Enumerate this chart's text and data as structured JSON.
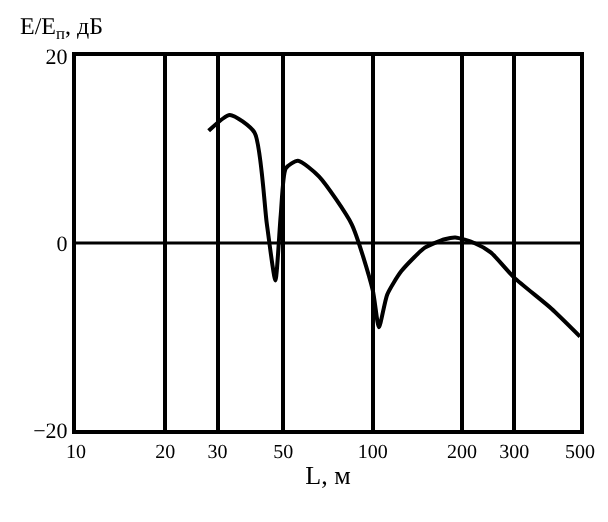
{
  "chart_data": {
    "type": "line",
    "ylabel": "E/E$_{п}$, дБ",
    "xlabel": "L, м",
    "log": "x",
    "color": "#000000",
    "x": [
      28,
      33,
      40,
      44,
      47,
      49,
      51,
      56,
      66,
      85,
      100,
      105,
      112,
      125,
      150,
      175,
      190,
      220,
      250,
      300,
      400,
      500
    ],
    "values": [
      12,
      13.7,
      11.8,
      2,
      -4,
      3,
      8,
      8.8,
      7.1,
      2,
      -5,
      -9,
      -5.5,
      -3,
      -0.5,
      0.4,
      0.6,
      0,
      -1,
      -3.7,
      -7,
      -10
    ],
    "xlim": [
      10,
      500
    ],
    "xticks": [
      10,
      20,
      30,
      50,
      100,
      200,
      300,
      500
    ],
    "ylim": [
      -20,
      20
    ],
    "yticks": [
      20,
      0,
      -20
    ],
    "grid": "x",
    "ref_lines": [
      {
        "axis": "y",
        "value": 0
      }
    ],
    "marker": "none",
    "line_style": "solid"
  }
}
